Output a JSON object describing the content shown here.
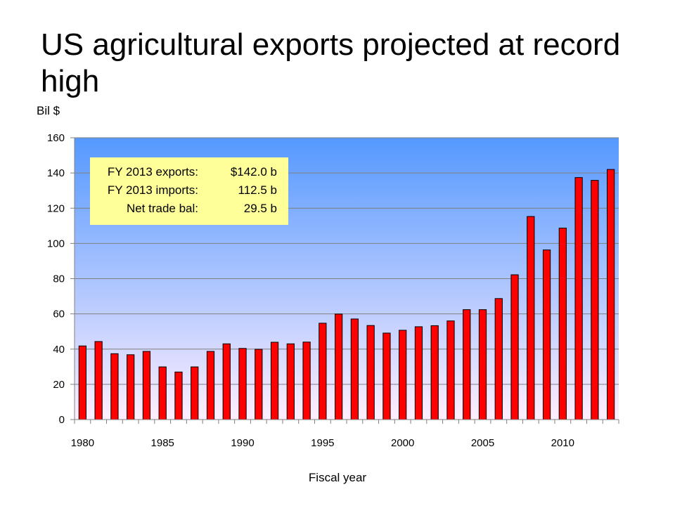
{
  "title": "US agricultural exports projected at record high",
  "chart_data": {
    "type": "bar",
    "ylabel": "Bil $",
    "xlabel": "Fiscal year",
    "ylim": [
      0,
      160
    ],
    "y_ticks": [
      0,
      20,
      40,
      60,
      80,
      100,
      120,
      140,
      160
    ],
    "x_tick_labels": [
      "1980",
      "1985",
      "1990",
      "1995",
      "2000",
      "2005",
      "2010"
    ],
    "grid": true,
    "legend": "none",
    "bar_color": "#ff0000",
    "plot_background": [
      "#5599ff",
      "#ffeeff"
    ],
    "series": [
      {
        "x": [
          1980,
          1981,
          1982,
          1983,
          1984,
          1985,
          1986,
          1987,
          1988,
          1989,
          1990,
          1991,
          1992,
          1993,
          1994,
          1995,
          1996,
          1997,
          1998,
          1999,
          2000,
          2001,
          2002,
          2003,
          2004,
          2005,
          2006,
          2007,
          2008,
          2009,
          2010,
          2011,
          2012,
          2013
        ],
        "values": [
          41.8,
          44.3,
          37.4,
          36.8,
          38.7,
          29.9,
          27,
          29.9,
          38.7,
          43,
          40.4,
          39.9,
          43.9,
          43,
          44,
          54.7,
          59.9,
          57.1,
          53.4,
          49.1,
          50.7,
          52.7,
          53.3,
          56,
          62.4,
          62.4,
          68.7,
          82.2,
          115.3,
          96.3,
          108.7,
          137.4,
          135.8,
          142
        ]
      }
    ],
    "annotations": [
      {
        "label": "FY 2013 exports:",
        "value": "$142.0 b"
      },
      {
        "label": "FY 2013 imports:",
        "value": "112.5 b"
      },
      {
        "label": "Net trade bal:",
        "value": "29.5 b"
      }
    ]
  }
}
